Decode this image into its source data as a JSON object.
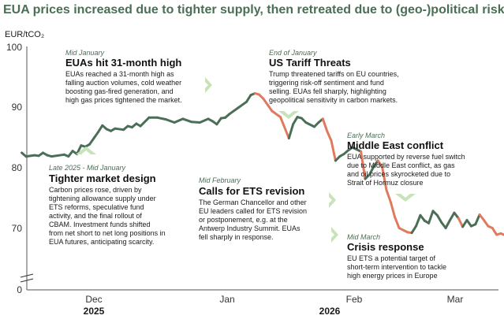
{
  "title": "EUA prices increased due to tighter supply, then retreated due to (geo-)political risk",
  "chart_data": {
    "type": "line",
    "unit_label": "EUR/tCO₂",
    "y_ticks": [
      "100",
      "90",
      "80",
      "70",
      "0"
    ],
    "ylim": [
      63,
      100
    ],
    "axis_break": true,
    "x_ticks": [
      {
        "label": "Dec",
        "year": "2025",
        "date": "2025-12-01"
      },
      {
        "label": "Jan",
        "year": "",
        "date": "2026-01-01"
      },
      {
        "label": "Feb",
        "year": "2026",
        "date": "2026-02-01"
      },
      {
        "label": "Mar",
        "year": "",
        "date": "2026-03-01"
      }
    ],
    "colors": {
      "rising": "#4b6e57",
      "falling": "#e07a5f",
      "accent": "#4a6f55",
      "arrow": "#c9e3b8"
    },
    "series": [
      {
        "name": "",
        "points": [
          [
            "2025-11-14",
            82.6
          ],
          [
            "2025-11-15",
            82.0
          ],
          [
            "2025-11-17",
            82.2
          ],
          [
            "2025-11-18",
            82.1
          ],
          [
            "2025-11-19",
            82.6
          ],
          [
            "2025-11-20",
            82.2
          ],
          [
            "2025-11-21",
            82.0
          ],
          [
            "2025-11-24",
            82.3
          ],
          [
            "2025-11-25",
            82.0
          ],
          [
            "2025-11-26",
            82.9
          ],
          [
            "2025-11-27",
            82.4
          ],
          [
            "2025-11-28",
            83.8
          ],
          [
            "2025-11-29",
            83.6
          ],
          [
            "2025-11-30",
            84.0
          ],
          [
            "2025-12-01",
            85.0
          ],
          [
            "2025-12-02",
            86.0
          ],
          [
            "2025-12-03",
            87.1
          ],
          [
            "2025-12-04",
            86.5
          ],
          [
            "2025-12-05",
            86.2
          ],
          [
            "2025-12-06",
            86.6
          ],
          [
            "2025-12-08",
            86.4
          ],
          [
            "2025-12-09",
            87.0
          ],
          [
            "2025-12-10",
            86.8
          ],
          [
            "2025-12-11",
            87.4
          ],
          [
            "2025-12-12",
            87.0
          ],
          [
            "2025-12-14",
            88.4
          ],
          [
            "2025-12-16",
            88.4
          ],
          [
            "2025-12-18",
            88.1
          ],
          [
            "2025-12-20",
            87.6
          ],
          [
            "2025-12-22",
            88.2
          ],
          [
            "2025-12-24",
            87.7
          ],
          [
            "2025-12-26",
            87.6
          ],
          [
            "2025-12-28",
            88.2
          ],
          [
            "2025-12-29",
            87.8
          ],
          [
            "2025-12-30",
            87.3
          ],
          [
            "2025-12-31",
            88.3
          ],
          [
            "2026-01-01",
            88.4
          ],
          [
            "2026-01-02",
            89.0
          ],
          [
            "2026-01-04",
            90.0
          ],
          [
            "2026-01-06",
            91.0
          ],
          [
            "2026-01-07",
            92.1
          ],
          [
            "2026-01-08",
            92.4
          ],
          [
            "2026-01-09",
            92.2
          ],
          [
            "2026-01-10",
            91.5
          ],
          [
            "2026-01-12",
            89.5
          ],
          [
            "2026-01-14",
            88.5
          ],
          [
            "2026-01-16",
            85.0
          ],
          [
            "2026-01-17",
            87.3
          ],
          [
            "2026-01-18",
            88.5
          ],
          [
            "2026-01-19",
            88.3
          ],
          [
            "2026-01-20",
            87.6
          ],
          [
            "2026-01-22",
            86.9
          ],
          [
            "2026-01-23",
            87.6
          ],
          [
            "2026-01-24",
            88.2
          ],
          [
            "2026-01-25",
            86.2
          ],
          [
            "2026-01-26",
            84.6
          ],
          [
            "2026-01-27",
            81.3
          ],
          [
            "2026-01-28",
            82.0
          ],
          [
            "2026-01-29",
            82.4
          ],
          [
            "2026-01-30",
            83.0
          ],
          [
            "2026-01-31",
            83.5
          ],
          [
            "2026-02-02",
            82.8
          ],
          [
            "2026-02-03",
            78.3
          ],
          [
            "2026-02-04",
            79.0
          ],
          [
            "2026-02-05",
            80.3
          ],
          [
            "2026-02-06",
            81.3
          ],
          [
            "2026-02-07",
            80.3
          ],
          [
            "2026-02-08",
            76.5
          ],
          [
            "2026-02-09",
            74.5
          ],
          [
            "2026-02-10",
            72.0
          ],
          [
            "2026-02-11",
            70.2
          ],
          [
            "2026-02-13",
            69.5
          ],
          [
            "2026-02-14",
            69.4
          ],
          [
            "2026-02-15",
            70.5
          ],
          [
            "2026-02-16",
            72.3
          ],
          [
            "2026-02-17",
            71.4
          ],
          [
            "2026-02-18",
            71.0
          ],
          [
            "2026-02-19",
            73.0
          ],
          [
            "2026-02-20",
            72.3
          ],
          [
            "2026-02-21",
            71.1
          ],
          [
            "2026-02-22",
            70.2
          ],
          [
            "2026-02-23",
            71.5
          ],
          [
            "2026-02-24",
            72.7
          ],
          [
            "2026-02-25",
            71.8
          ],
          [
            "2026-02-26",
            70.4
          ],
          [
            "2026-02-27",
            71.5
          ],
          [
            "2026-02-28",
            70.5
          ],
          [
            "2026-03-01",
            70.8
          ],
          [
            "2026-03-02",
            72.4
          ],
          [
            "2026-03-03",
            71.5
          ],
          [
            "2026-03-04",
            70.5
          ],
          [
            "2026-03-05",
            70.2
          ],
          [
            "2026-03-06",
            69.1
          ],
          [
            "2026-03-07",
            69.3
          ],
          [
            "2026-03-08",
            69.0
          ],
          [
            "2026-03-09",
            69.0
          ],
          [
            "2026-03-10",
            68.8
          ],
          [
            "2026-03-11",
            66.8
          ],
          [
            "2026-03-12",
            66.0
          ],
          [
            "2026-03-13",
            63.8
          ],
          [
            "2026-03-14",
            67.2
          ],
          [
            "2026-03-15",
            67.6
          ]
        ]
      }
    ]
  },
  "annotations": [
    {
      "period": "Mid January",
      "heading": "EUAs hit 31-month high",
      "body": [
        "EUAs reached a 31-month high as",
        "falling auction volumes, cold weather",
        "boosting gas-fired generation, and",
        "high gas prices tightened the market."
      ]
    },
    {
      "period": "End of January",
      "heading": "US Tariff Threats",
      "body": [
        "Trump threatened tariffs on EU countries,",
        "triggering risk-off sentiment and fund",
        "selling. EUAs fell sharply, highlighting",
        "geopolitical sensitivity in carbon markets."
      ]
    },
    {
      "period": "Late 2025 - Mid January",
      "heading": "Tighter market design",
      "body": [
        "Carbon prices rose, driven by",
        "tightening allowance supply under",
        "ETS reforms, speculative fund",
        "activity, and the final rollout of",
        "CBAM. Investment funds shifted",
        "from net short to net long positions in",
        "EUA futures, anticipating scarcity."
      ]
    },
    {
      "period": "Mid February",
      "heading": "Calls for ETS revision",
      "body": [
        "The German Chancellor and other",
        "EU leaders called for ETS revision",
        "or postponement, e.g. at the",
        "Antwerp Industry Summit. EUAs",
        "fell sharply in response."
      ]
    },
    {
      "period": "Early March",
      "heading": "Middle East conflict",
      "body": [
        "EUA supported by reverse fuel switch",
        "due to Middle East conflict, as gas",
        "and oil prices skyrocketed due to",
        "Strait of Hormuz closure"
      ]
    },
    {
      "period": "Mid March",
      "heading": "Crisis response",
      "body": [
        "EU ETS a potential target of",
        "short-term intervention to tackle",
        "high energy prices in Europe"
      ]
    }
  ]
}
